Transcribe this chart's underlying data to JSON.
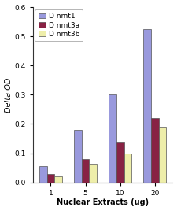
{
  "categories": [
    "1",
    "5",
    "10",
    "20"
  ],
  "series": {
    "D nmt1": [
      0.055,
      0.18,
      0.3,
      0.525
    ],
    "D nmt3a": [
      0.03,
      0.08,
      0.14,
      0.22
    ],
    "D nmt3b": [
      0.02,
      0.065,
      0.1,
      0.19
    ]
  },
  "colors": {
    "D nmt1": "#9999dd",
    "D nmt3a": "#882244",
    "D nmt3b": "#eeeeaa"
  },
  "ylabel": "Delta OD",
  "xlabel": "Nuclear Extracts (ug)",
  "ylim": [
    0,
    0.6
  ],
  "yticks": [
    0.0,
    0.1,
    0.2,
    0.3,
    0.4,
    0.5,
    0.6
  ],
  "label_fontsize": 7,
  "tick_fontsize": 6.5,
  "legend_fontsize": 6.5,
  "bar_width": 0.22,
  "background_color": "#ffffff",
  "edge_color": "#555555"
}
